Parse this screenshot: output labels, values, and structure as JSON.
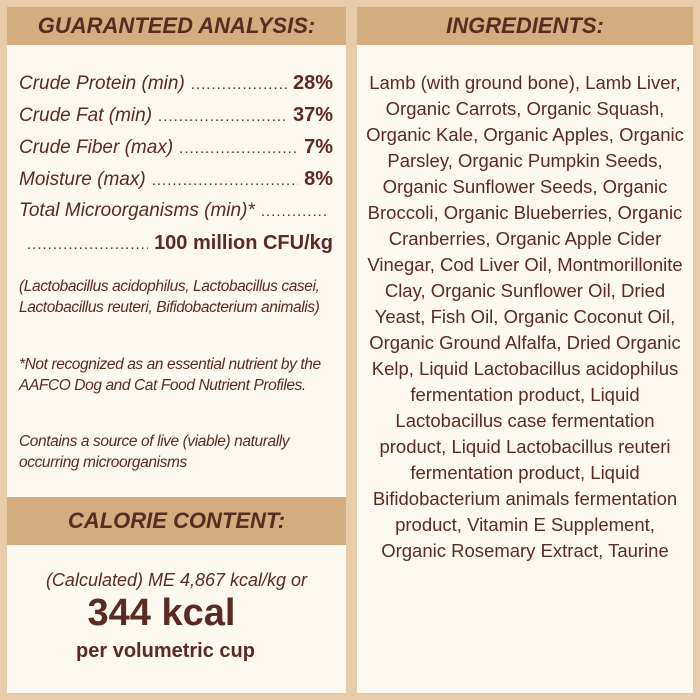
{
  "guaranteed_analysis": {
    "title": "GUARANTEED ANALYSIS:",
    "rows": [
      {
        "label": "Crude Protein (min)",
        "value": "28%"
      },
      {
        "label": "Crude Fat (min)",
        "value": "37%"
      },
      {
        "label": "Crude Fiber (max)",
        "value": "7%"
      },
      {
        "label": "Moisture (max)",
        "value": "8%"
      },
      {
        "label": "Total Microorganisms (min)*",
        "value": "100 million CFU/kg"
      }
    ],
    "notes": [
      "(Lactobacillus acidophilus, Lactobacillus casei, Lactobacillus reuteri, Bifidobacterium animalis)",
      "*Not recognized as an essential nutrient by the AAFCO Dog and Cat Food Nutrient Profiles.",
      "Contains a source of live (viable) naturally occurring microorganisms"
    ]
  },
  "calorie_content": {
    "title": "CALORIE CONTENT:",
    "calculated": "(Calculated) ME 4,867 kcal/kg or",
    "kcal": "344 kcal",
    "per": "per volumetric cup"
  },
  "ingredients": {
    "title": "INGREDIENTS:",
    "text": "Lamb (with ground bone), Lamb Liver, Organic Carrots, Organic Squash, Organic Kale, Organic Apples, Organic Parsley, Organic Pumpkin Seeds, Organic Sunflower Seeds, Organic Broccoli, Organic Blueberries, Organic Cranberries, Organic Apple Cider Vinegar, Cod Liver Oil, Montmorillonite Clay, Organic Sunflower Oil, Dried Yeast, Fish Oil, Organic Coconut Oil, Organic Ground Alfalfa, Dried Organic Kelp, Liquid Lactobacillus acidophilus fermentation product, Liquid Lactobacillus case fermentation product, Liquid Lactobacillus reuteri fermentation product, Liquid Bifidobacterium animals fermentation product, Vitamin E Supplement, Organic Rosemary Extract, Taurine"
  },
  "colors": {
    "background": "#e8cba9",
    "header": "#d3ac80",
    "panel": "#fdf9f1",
    "text": "#5b2a20"
  }
}
